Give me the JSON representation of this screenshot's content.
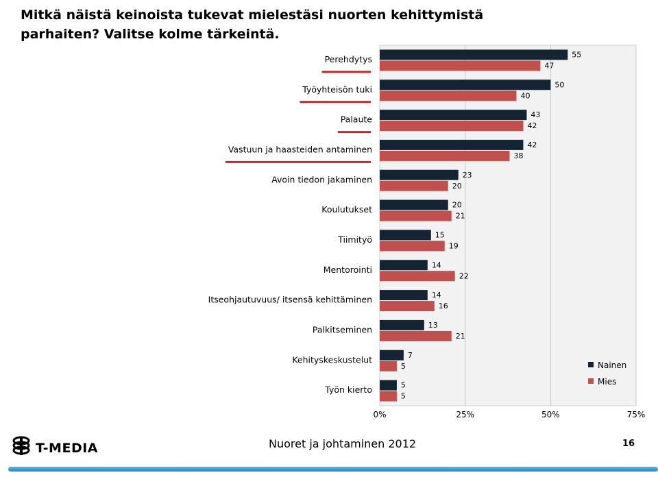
{
  "title_lines": [
    "Mitkä näistä keinoista tukevat mielestäsi nuorten kehittymistä",
    "parhaiten? Valitse kolme tärkeintä."
  ],
  "footer": {
    "brand": "T-MEDIA",
    "logo_icon": "globe-stack-icon",
    "center_text": "Nuoret ja johtaminen 2012",
    "page_number": "16"
  },
  "colors": {
    "nainen": "#142433",
    "mies": "#c0504d",
    "underline": "#d42020",
    "plot_bg": "#f2f2f2",
    "footer_bar": "#1f86c4"
  },
  "chart_data": {
    "type": "bar",
    "orientation": "horizontal",
    "categories": [
      "Perehdytys",
      "Työyhteisön tuki",
      "Palaute",
      "Vastuun ja haasteiden antaminen",
      "Avoin tiedon jakaminen",
      "Koulutukset",
      "Tiimityö",
      "Mentorointi",
      "Itseohjautuvuus/ itsensä kehittäminen",
      "Palkitseminen",
      "Kehityskeskustelut",
      "Työn kierto"
    ],
    "underlined_categories": [
      "Perehdytys",
      "Työyhteisön tuki",
      "Palaute",
      "Vastuun ja haasteiden antaminen"
    ],
    "series": [
      {
        "name": "Nainen",
        "values": [
          55,
          50,
          43,
          42,
          23,
          20,
          15,
          14,
          14,
          13,
          7,
          5
        ]
      },
      {
        "name": "Mies",
        "values": [
          47,
          40,
          42,
          38,
          20,
          21,
          19,
          22,
          16,
          21,
          5,
          5
        ]
      }
    ],
    "x_ticks": [
      "0%",
      "25%",
      "50%",
      "75%"
    ],
    "xlim": [
      0,
      75
    ],
    "grid": "vertical",
    "legend": "bottom-right"
  }
}
